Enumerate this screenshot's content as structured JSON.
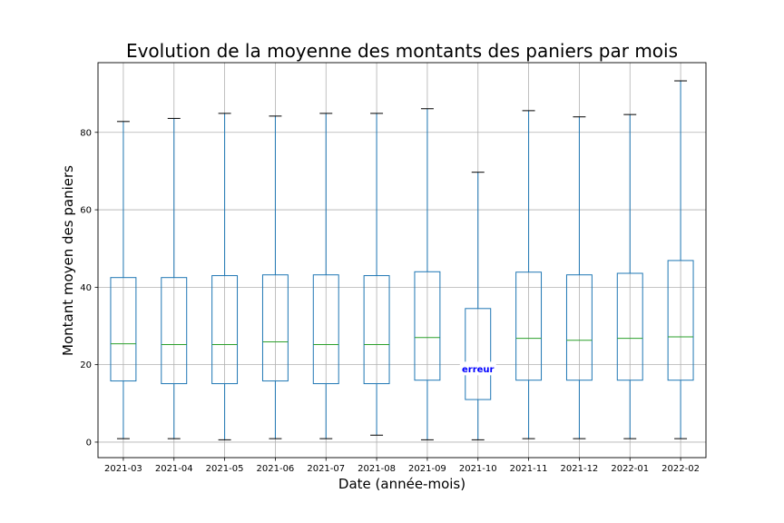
{
  "chart_data": {
    "type": "box",
    "title": "Evolution de la moyenne des montants des paniers par mois",
    "xlabel": "Date (année-mois)",
    "ylabel": "Montant moyen des paniers",
    "ylim": [
      -4,
      98
    ],
    "yticks": [
      0,
      20,
      40,
      60,
      80
    ],
    "grid": true,
    "categories": [
      "2021-03",
      "2021-04",
      "2021-05",
      "2021-06",
      "2021-07",
      "2021-08",
      "2021-09",
      "2021-10",
      "2021-11",
      "2021-12",
      "2022-01",
      "2022-02"
    ],
    "boxes": [
      {
        "whislo": 0.9,
        "q1": 15.8,
        "med": 25.4,
        "q3": 42.5,
        "whishi": 82.8
      },
      {
        "whislo": 0.9,
        "q1": 15.1,
        "med": 25.2,
        "q3": 42.5,
        "whishi": 83.6
      },
      {
        "whislo": 0.6,
        "q1": 15.1,
        "med": 25.2,
        "q3": 43.0,
        "whishi": 84.9
      },
      {
        "whislo": 0.9,
        "q1": 15.8,
        "med": 25.9,
        "q3": 43.2,
        "whishi": 84.2
      },
      {
        "whislo": 0.9,
        "q1": 15.1,
        "med": 25.2,
        "q3": 43.2,
        "whishi": 84.9
      },
      {
        "whislo": 1.8,
        "q1": 15.1,
        "med": 25.2,
        "q3": 43.0,
        "whishi": 84.9
      },
      {
        "whislo": 0.6,
        "q1": 16.0,
        "med": 27.0,
        "q3": 44.0,
        "whishi": 86.1
      },
      {
        "whislo": 0.6,
        "q1": 11.0,
        "med": null,
        "q3": 34.5,
        "whishi": 69.7
      },
      {
        "whislo": 0.9,
        "q1": 16.0,
        "med": 26.8,
        "q3": 43.9,
        "whishi": 85.6
      },
      {
        "whislo": 0.9,
        "q1": 16.0,
        "med": 26.3,
        "q3": 43.2,
        "whishi": 84.0
      },
      {
        "whislo": 0.9,
        "q1": 16.0,
        "med": 26.8,
        "q3": 43.6,
        "whishi": 84.6
      },
      {
        "whislo": 0.9,
        "q1": 16.0,
        "med": 27.2,
        "q3": 46.9,
        "whishi": 93.3
      }
    ],
    "annotations": [
      {
        "text": "erreur",
        "category": "2021-10",
        "y": 18.9,
        "color": "#0000ff"
      }
    ],
    "colors": {
      "box": "#1f77b4",
      "median": "#2ca02c",
      "grid": "#b0b0b0",
      "cap": "#000000"
    }
  }
}
